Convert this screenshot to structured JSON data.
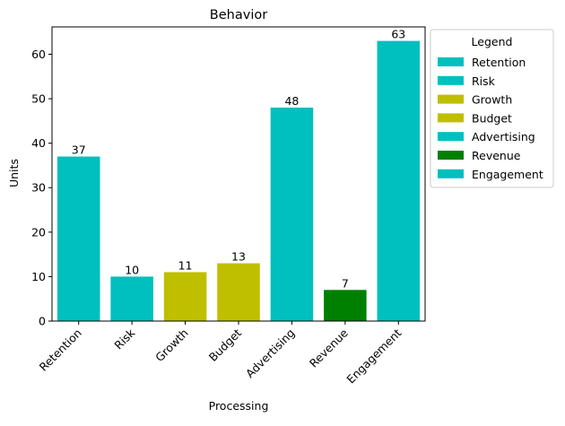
{
  "chart_data": {
    "type": "bar",
    "title": "Behavior",
    "xlabel": "Processing",
    "ylabel": "Units",
    "categories": [
      "Retention",
      "Risk",
      "Growth",
      "Budget",
      "Advertising",
      "Revenue",
      "Engagement"
    ],
    "values": [
      37,
      10,
      11,
      13,
      48,
      7,
      63
    ],
    "colors": [
      "#00bfbf",
      "#00bfbf",
      "#bfbf00",
      "#bfbf00",
      "#00bfbf",
      "#008000",
      "#00bfbf"
    ],
    "ylim": [
      0,
      66.15
    ],
    "yticks": [
      0,
      10,
      20,
      30,
      40,
      50,
      60
    ],
    "grid": false,
    "legend": {
      "title": "Legend",
      "placement": "outside-right",
      "entries": [
        "Retention",
        "Risk",
        "Growth",
        "Budget",
        "Advertising",
        "Revenue",
        "Engagement"
      ]
    }
  }
}
